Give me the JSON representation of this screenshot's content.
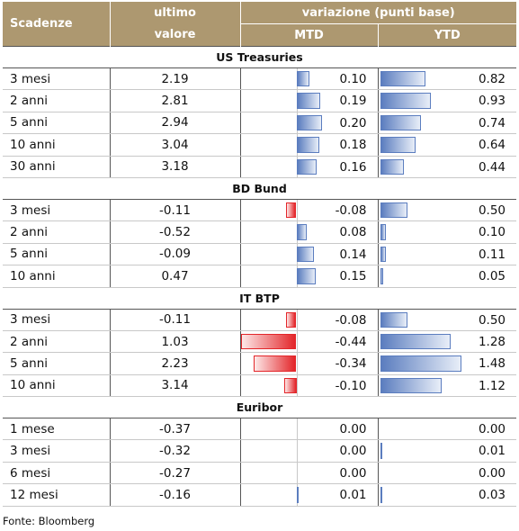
{
  "header": {
    "scadenze": "Scadenze",
    "ultimo_line1": "ultimo",
    "ultimo_line2": "valore",
    "variazione": "variazione (punti base)",
    "mtd": "MTD",
    "ytd": "YTD"
  },
  "sections": [
    {
      "title": "US Treasuries",
      "rows": [
        {
          "label": "3 mesi",
          "value": "2.19",
          "mtd": "0.10",
          "ytd": "0.82",
          "mtd_num": 0.1,
          "ytd_num": 0.82
        },
        {
          "label": "2 anni",
          "value": "2.81",
          "mtd": "0.19",
          "ytd": "0.93",
          "mtd_num": 0.19,
          "ytd_num": 0.93
        },
        {
          "label": "5 anni",
          "value": "2.94",
          "mtd": "0.20",
          "ytd": "0.74",
          "mtd_num": 0.2,
          "ytd_num": 0.74
        },
        {
          "label": "10 anni",
          "value": "3.04",
          "mtd": "0.18",
          "ytd": "0.64",
          "mtd_num": 0.18,
          "ytd_num": 0.64
        },
        {
          "label": "30 anni",
          "value": "3.18",
          "mtd": "0.16",
          "ytd": "0.44",
          "mtd_num": 0.16,
          "ytd_num": 0.44
        }
      ]
    },
    {
      "title": "BD Bund",
      "rows": [
        {
          "label": "3 mesi",
          "value": "-0.11",
          "mtd": "-0.08",
          "ytd": "0.50",
          "mtd_num": -0.08,
          "ytd_num": 0.5
        },
        {
          "label": "2 anni",
          "value": "-0.52",
          "mtd": "0.08",
          "ytd": "0.10",
          "mtd_num": 0.08,
          "ytd_num": 0.1
        },
        {
          "label": "5 anni",
          "value": "-0.09",
          "mtd": "0.14",
          "ytd": "0.11",
          "mtd_num": 0.14,
          "ytd_num": 0.11
        },
        {
          "label": "10 anni",
          "value": "0.47",
          "mtd": "0.15",
          "ytd": "0.05",
          "mtd_num": 0.15,
          "ytd_num": 0.05
        }
      ]
    },
    {
      "title": "IT BTP",
      "rows": [
        {
          "label": "3 mesi",
          "value": "-0.11",
          "mtd": "-0.08",
          "ytd": "0.50",
          "mtd_num": -0.08,
          "ytd_num": 0.5
        },
        {
          "label": "2 anni",
          "value": "1.03",
          "mtd": "-0.44",
          "ytd": "1.28",
          "mtd_num": -0.44,
          "ytd_num": 1.28
        },
        {
          "label": "5 anni",
          "value": "2.23",
          "mtd": "-0.34",
          "ytd": "1.48",
          "mtd_num": -0.34,
          "ytd_num": 1.48
        },
        {
          "label": "10 anni",
          "value": "3.14",
          "mtd": "-0.10",
          "ytd": "1.12",
          "mtd_num": -0.1,
          "ytd_num": 1.12
        }
      ]
    },
    {
      "title": "Euribor",
      "rows": [
        {
          "label": "1 mese",
          "value": "-0.37",
          "mtd": "0.00",
          "ytd": "0.00",
          "mtd_num": 0.0,
          "ytd_num": 0.0
        },
        {
          "label": "3 mesi",
          "value": "-0.32",
          "mtd": "0.00",
          "ytd": "0.01",
          "mtd_num": 0.0,
          "ytd_num": 0.01
        },
        {
          "label": "6 mesi",
          "value": "-0.27",
          "mtd": "0.00",
          "ytd": "0.00",
          "mtd_num": 0.0,
          "ytd_num": 0.0
        },
        {
          "label": "12 mesi",
          "value": "-0.16",
          "mtd": "0.01",
          "ytd": "0.03",
          "mtd_num": 0.01,
          "ytd_num": 0.03
        }
      ]
    }
  ],
  "footer": "Fonte: Bloomberg",
  "colors": {
    "header_bg": "#ad9870",
    "positive_bar": "#5b7dbf",
    "negative_bar": "#e3262a"
  }
}
